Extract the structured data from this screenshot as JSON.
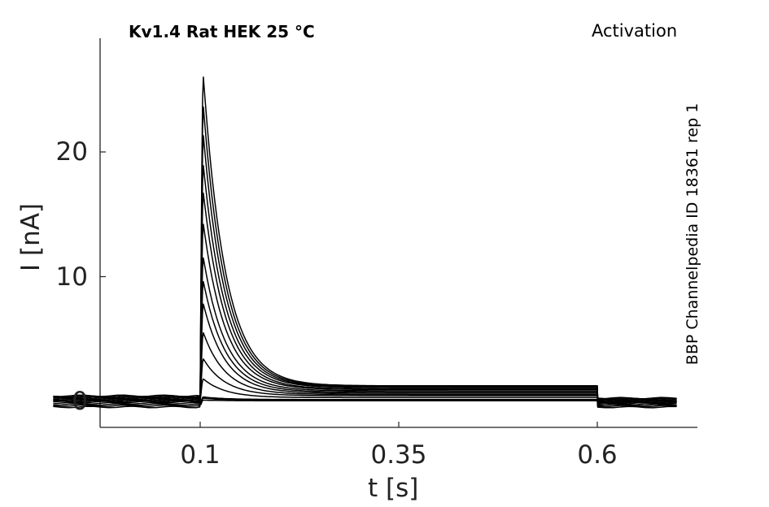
{
  "chart_data": {
    "type": "line",
    "title": "Kv1.4  Rat  HEK  25 °C",
    "protocol": "Activation",
    "side_label": "BBP Channelpedia ID 18361 rep 1",
    "xlabel": "t [s]",
    "ylabel": "I [nA]",
    "xlim": [
      -0.1,
      0.75
    ],
    "ylim": [
      -2,
      29
    ],
    "xticks": [
      0.1,
      0.35,
      0.6
    ],
    "xtick_labels": [
      "0.1",
      "0.35",
      "0.6"
    ],
    "yticks": [
      0,
      10,
      20
    ],
    "ytick_labels": [
      "0",
      "10",
      "20"
    ],
    "grid": false,
    "legend": "none",
    "line_color": "#000000",
    "step_on": 0.1,
    "step_off": 0.6,
    "decay_tau_s": 0.028,
    "series": [
      {
        "peak": 0.1,
        "steady": 0.05,
        "baseline": -0.45
      },
      {
        "peak": 0.25,
        "steady": 0.1,
        "baseline": -0.35
      },
      {
        "peak": 0.35,
        "steady": 0.15,
        "baseline": -0.25
      },
      {
        "peak": 1.8,
        "steady": 0.3,
        "baseline": -0.15
      },
      {
        "peak": 3.4,
        "steady": 0.45,
        "baseline": -0.05
      },
      {
        "peak": 5.5,
        "steady": 0.55,
        "baseline": 0.0
      },
      {
        "peak": 7.8,
        "steady": 0.65,
        "baseline": 0.05
      },
      {
        "peak": 9.6,
        "steady": 0.75,
        "baseline": 0.1
      },
      {
        "peak": 11.5,
        "steady": 0.85,
        "baseline": 0.15
      },
      {
        "peak": 14.2,
        "steady": 0.95,
        "baseline": 0.2
      },
      {
        "peak": 16.7,
        "steady": 1.0,
        "baseline": 0.25
      },
      {
        "peak": 18.9,
        "steady": 1.1,
        "baseline": 0.3
      },
      {
        "peak": 21.3,
        "steady": 1.15,
        "baseline": 0.35
      },
      {
        "peak": 23.6,
        "steady": 1.2,
        "baseline": 0.4
      },
      {
        "peak": 26.0,
        "steady": 1.25,
        "baseline": 0.45
      }
    ]
  }
}
